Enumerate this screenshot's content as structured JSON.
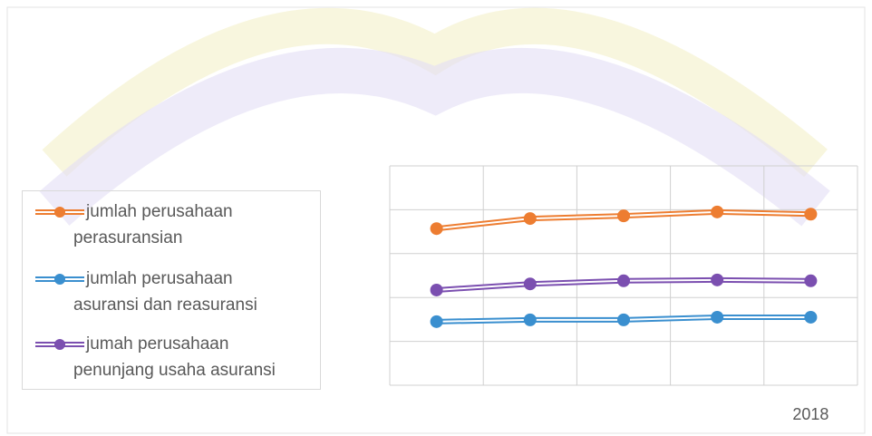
{
  "chart_data": {
    "type": "line",
    "categories": [
      null,
      null,
      null,
      null,
      "2018"
    ],
    "series": [
      {
        "name": "jumlah perusahaan perasuransian",
        "color": "#ed7d31",
        "values": [
          3.57,
          3.8,
          3.86,
          3.95,
          3.9
        ]
      },
      {
        "name": "jumlah perusahaan asuransi dan reasuransi",
        "color": "#3a8fcf",
        "values": [
          1.45,
          1.49,
          1.49,
          1.55,
          1.55
        ]
      },
      {
        "name": "jumah perusahaan penunjang usaha asuransi",
        "color": "#7b4fb0",
        "values": [
          2.17,
          2.31,
          2.38,
          2.4,
          2.38
        ]
      }
    ],
    "ylim": [
      0,
      5
    ],
    "yticks": [
      0,
      1,
      2,
      3,
      4,
      5
    ],
    "grid": true,
    "legend": "left"
  }
}
